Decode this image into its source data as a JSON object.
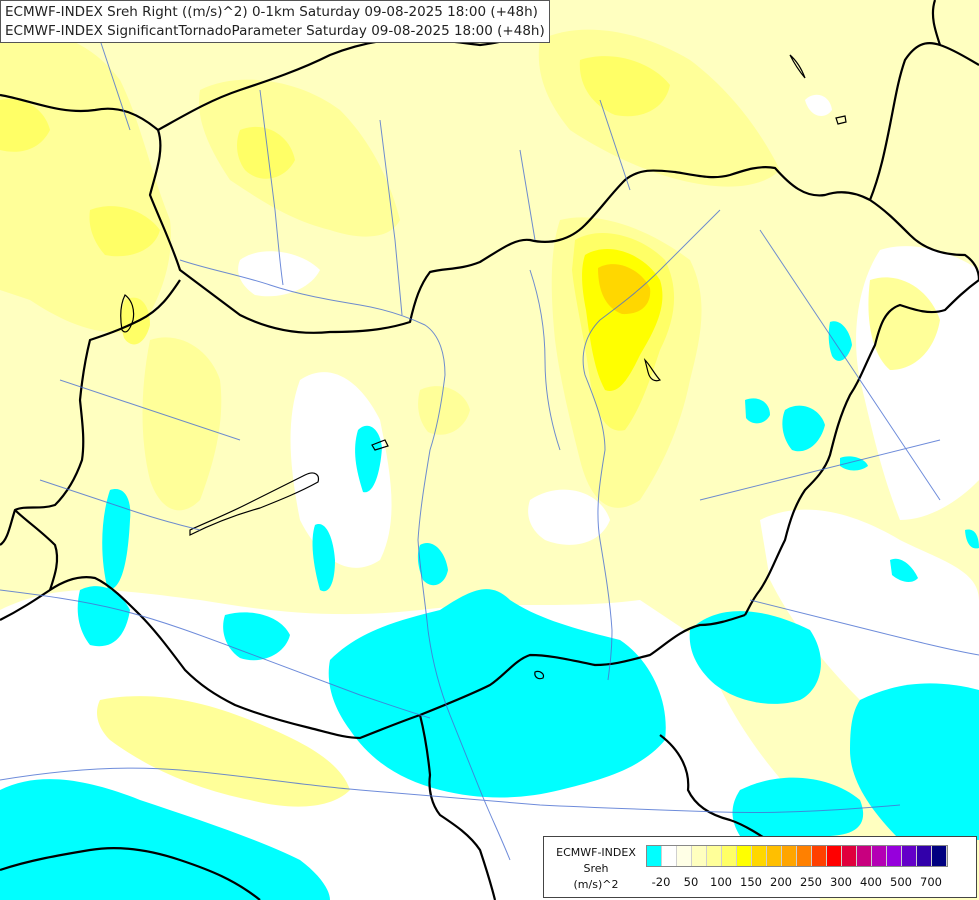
{
  "title": {
    "line1": "ECMWF-INDEX Sreh Right ((m/s)^2) 0-1km Saturday 09-08-2025 18:00 (+48h)",
    "line2": "ECMWF-INDEX SignificantTornadoParameter Saturday 09-08-2025 18:00 (+48h)"
  },
  "legend": {
    "title1": "ECMWF-INDEX",
    "title2": "Sreh",
    "unit": "(m/s)^2",
    "colors": [
      "#00ffff",
      "#ffffff",
      "#ffffe6",
      "#ffffbf",
      "#ffff99",
      "#ffff66",
      "#ffff00",
      "#ffd700",
      "#ffbf00",
      "#ffa500",
      "#ff8000",
      "#ff4000",
      "#ff0000",
      "#e0003c",
      "#c8007f",
      "#b400b4",
      "#9600dc",
      "#6400c8",
      "#3200aa",
      "#000080"
    ],
    "ticks": [
      "-20",
      "50",
      "100",
      "150",
      "200",
      "250",
      "300",
      "400",
      "500",
      "700"
    ]
  },
  "colors": {
    "pale_yellow": "#ffffc0",
    "light_yellow": "#ffff99",
    "yellow": "#ffff66",
    "strong_yellow": "#ffff00",
    "gold": "#ffd700",
    "cyan": "#00ffff",
    "white": "#ffffff"
  }
}
